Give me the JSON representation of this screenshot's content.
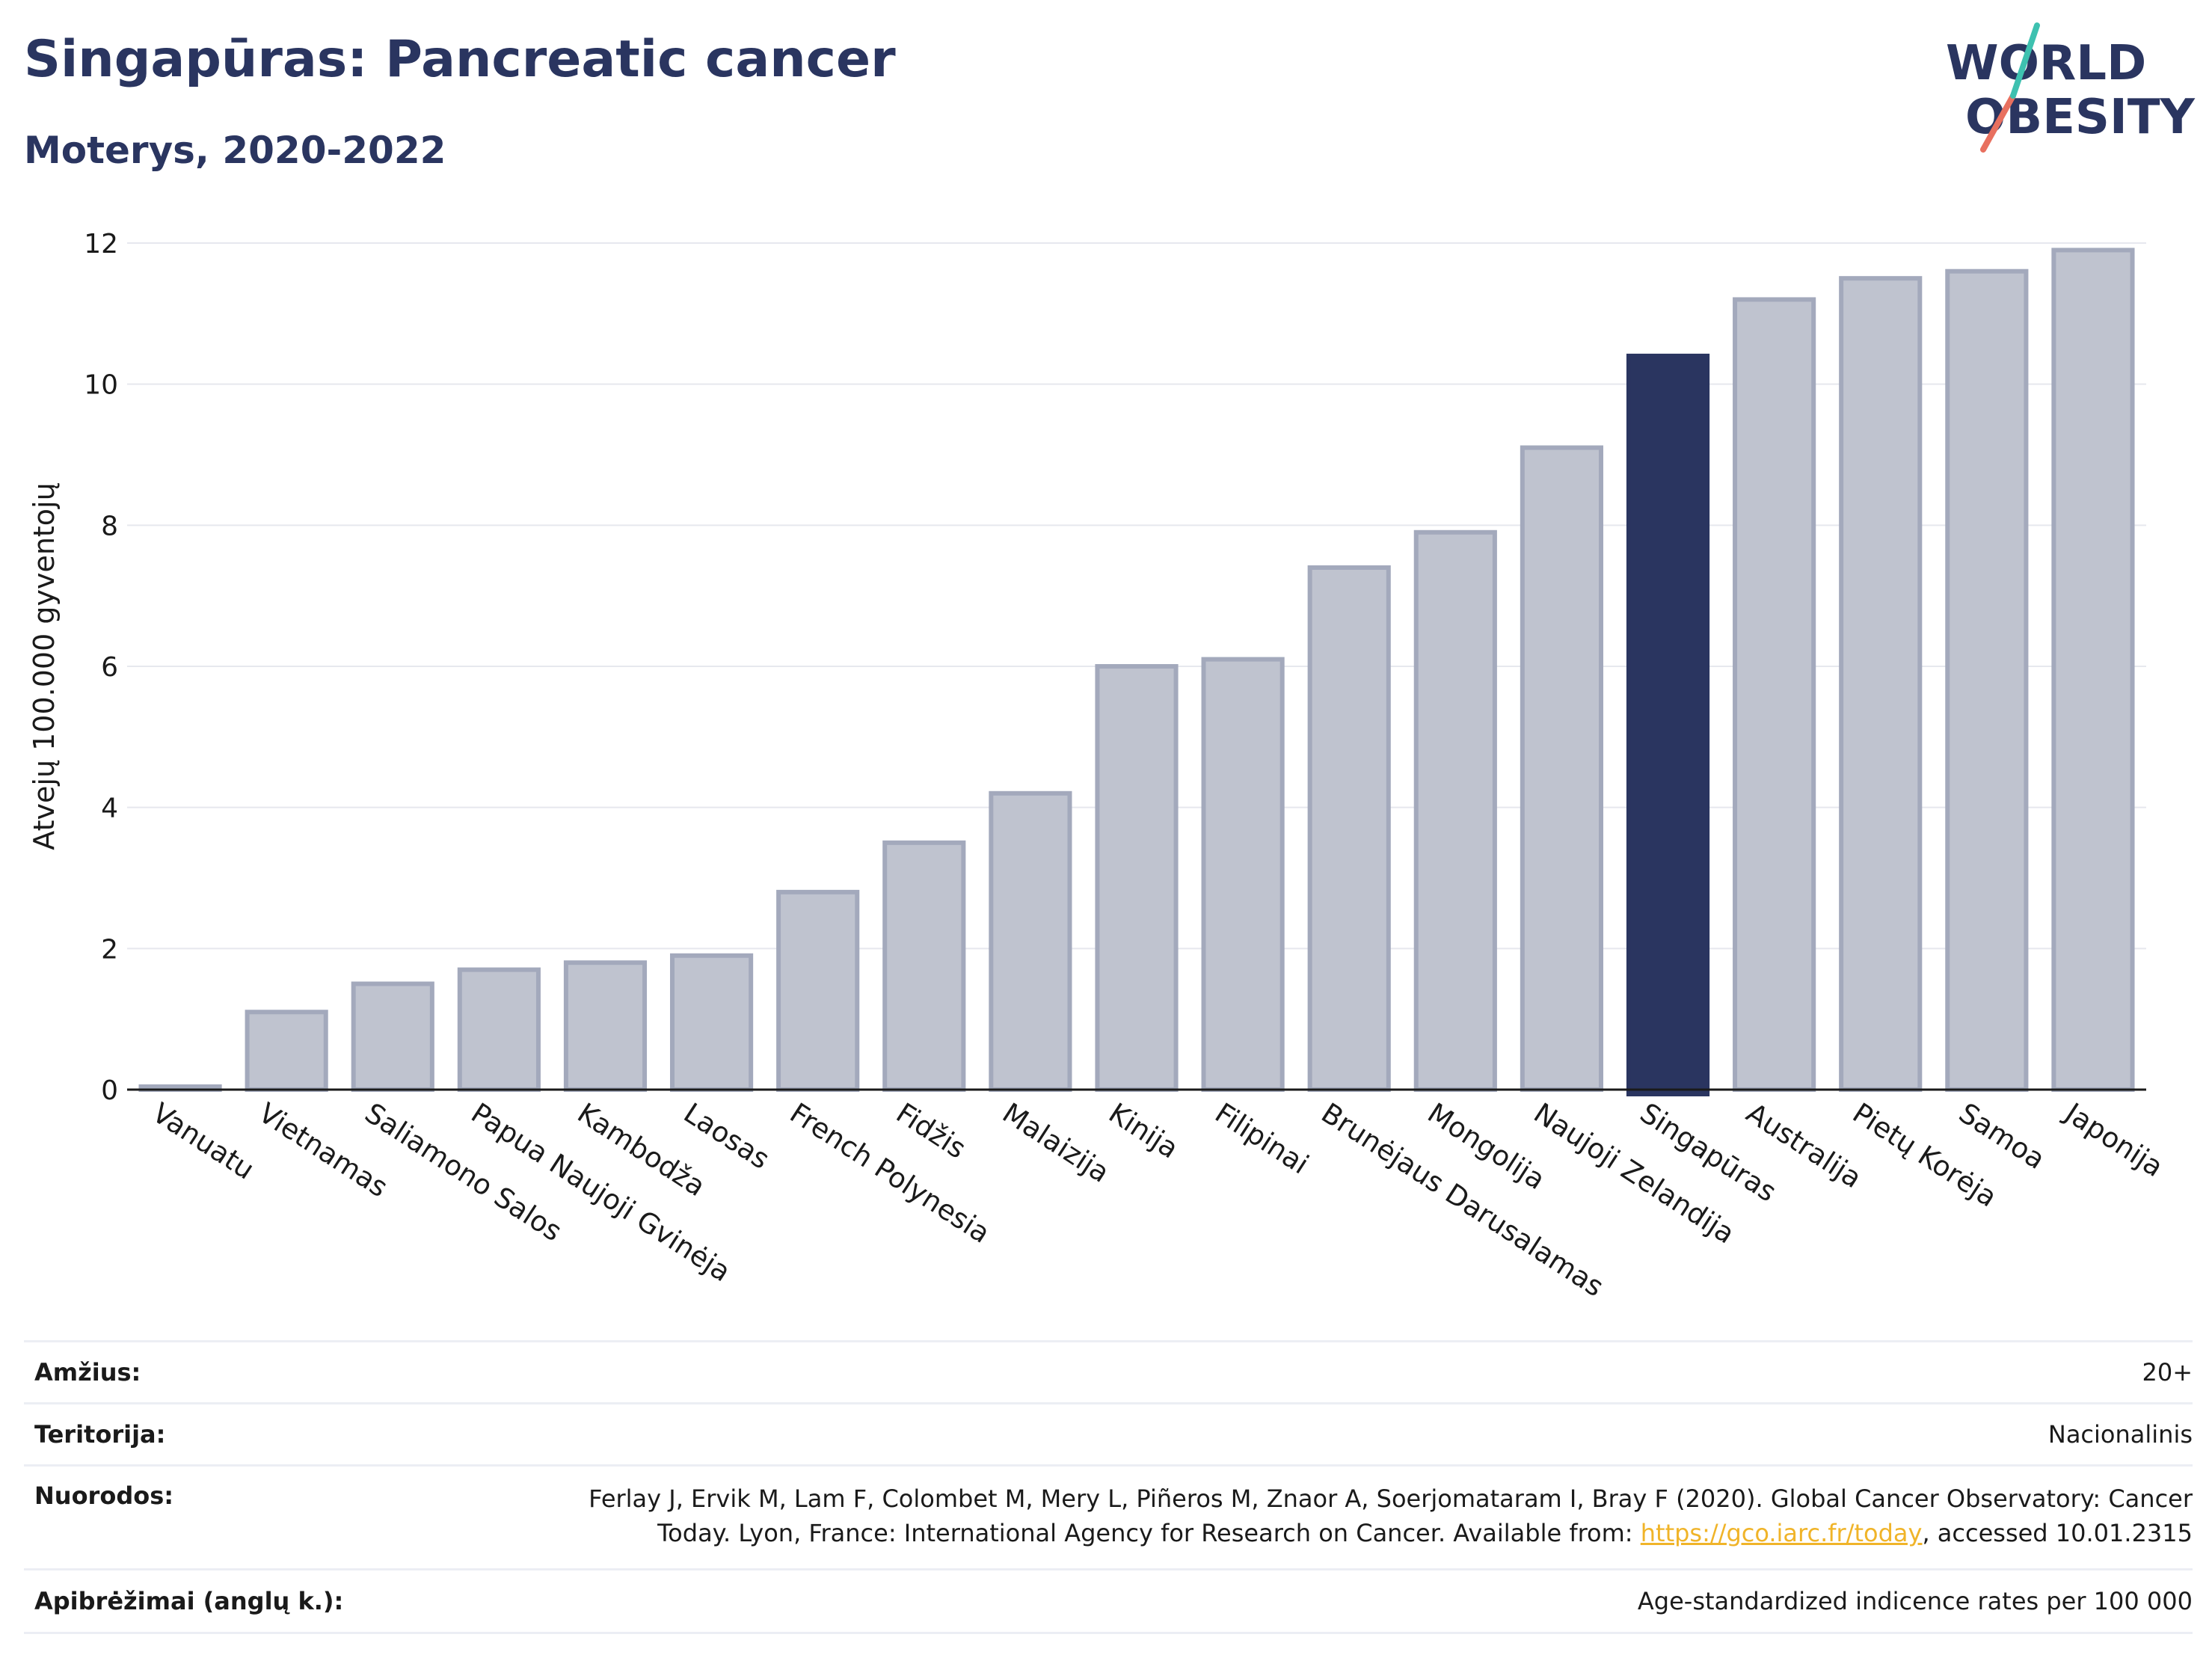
{
  "header": {
    "title": "Singapūras: Pancreatic cancer",
    "subtitle": "Moterys, 2020-2022",
    "logo_line1": "WORLD",
    "logo_line2": "OBESITY"
  },
  "chart_data": {
    "type": "bar",
    "ylabel": "Atvejų 100.000 gyventojų",
    "ylim": [
      0,
      12
    ],
    "yticks": [
      0,
      2,
      4,
      6,
      8,
      10,
      12
    ],
    "grid": true,
    "categories": [
      "Vanuatu",
      "Vietnamas",
      "Saliamono Salos",
      "Papua Naujoji Gvinėja",
      "Kambodža",
      "Laosas",
      "French Polynesia",
      "Fidžis",
      "Malaizija",
      "Kinija",
      "Filipinai",
      "Brunėjaus Darusalamas",
      "Mongolija",
      "Naujoji Zelandija",
      "Singapūras",
      "Australija",
      "Pietų Korėja",
      "Samoa",
      "Japonija"
    ],
    "values": [
      0.02,
      1.1,
      1.5,
      1.7,
      1.8,
      1.9,
      2.8,
      3.5,
      4.2,
      6.0,
      6.1,
      7.4,
      7.9,
      9.1,
      10.4,
      11.2,
      11.5,
      11.6,
      11.9
    ],
    "highlight": "Singapūras",
    "colors": {
      "highlight": "#2a3560",
      "default": "#bfc3cf",
      "default_stroke": "#a3a9bc"
    }
  },
  "info": {
    "age_label": "Amžius:",
    "age_value": "20+",
    "territory_label": "Teritorija:",
    "territory_value": "Nacionalinis",
    "references_label": "Nuorodos:",
    "references_line1": "Ferlay J, Ervik M, Lam F, Colombet M, Mery L, Piñeros M, Znaor A, Soerjomataram I, Bray F (2020). Global Cancer Observatory: Cancer",
    "references_line2_pre": "Today. Lyon, France: International Agency for Research on Cancer. Available from: ",
    "references_link": "https://gco.iarc.fr/today",
    "references_line2_post": ", accessed 10.01.2315",
    "definitions_label": "Apibrėžimai (anglų k.):",
    "definitions_value": "Age-standardized indicence rates per 100 000"
  }
}
